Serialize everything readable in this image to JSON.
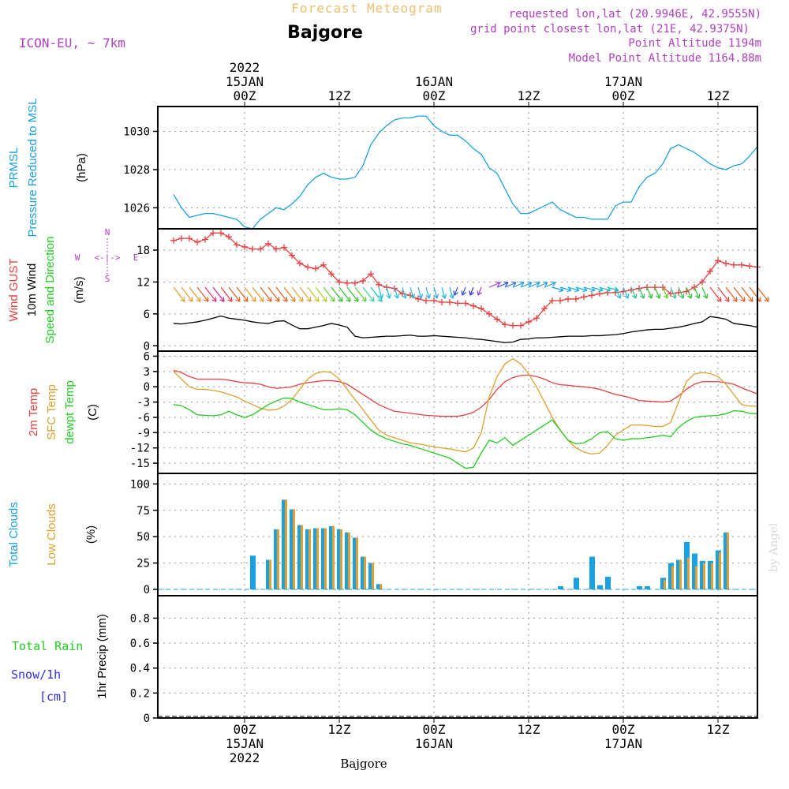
{
  "header": {
    "product": "Forecast Meteogram",
    "location": "Bajgore",
    "model": "ICON-EU, ~ 7km",
    "requested": "requested lon,lat (20.9946E, 42.9555N)",
    "closest": "grid point closest lon,lat (21E, 42.9375N)",
    "point_alt": "Point Altitude 1194m",
    "model_alt": "Model Point Altitude 1164.88m",
    "footer": "Bajgore",
    "credit": "by Angel"
  },
  "colors": {
    "cyan": "#1ba1e2",
    "red": "#e84040",
    "orange": "#e0a030",
    "green": "#22cc22",
    "purple": "#b040c0",
    "blue": "#3030e0",
    "black": "#000000"
  },
  "time_axis": {
    "top_labels": [
      {
        "t": 9,
        "lines": [
          "2022",
          "15JAN",
          "00Z"
        ]
      },
      {
        "t": 21,
        "lines": [
          "12Z"
        ]
      },
      {
        "t": 33,
        "lines": [
          "16JAN",
          "00Z"
        ]
      },
      {
        "t": 45,
        "lines": [
          "12Z"
        ]
      },
      {
        "t": 57,
        "lines": [
          "17JAN",
          "00Z"
        ]
      },
      {
        "t": 69,
        "lines": [
          "12Z"
        ]
      }
    ],
    "bottom_labels": [
      {
        "t": 9,
        "lines": [
          "00Z",
          "15JAN",
          "2022"
        ]
      },
      {
        "t": 21,
        "lines": [
          "12Z"
        ]
      },
      {
        "t": 33,
        "lines": [
          "00Z",
          "16JAN"
        ]
      },
      {
        "t": 45,
        "lines": [
          "12Z"
        ]
      },
      {
        "t": 57,
        "lines": [
          "00Z",
          "17JAN"
        ]
      },
      {
        "t": 69,
        "lines": [
          "12Z"
        ]
      }
    ],
    "t_range": [
      -2,
      74
    ]
  },
  "chart_data": [
    {
      "type": "line",
      "id": "pressure",
      "ylabel_outer": [
        "PRMSL",
        "Pressure Reduced to MSL"
      ],
      "unit": "(hPa)",
      "ylim": [
        1024.9,
        1031.3
      ],
      "yticks": [
        1026,
        1028,
        1030
      ],
      "series": [
        {
          "name": "PRMSL",
          "color": "#1ba1e2",
          "values": [
            1026.7,
            1026.0,
            1025.5,
            1025.6,
            1025.7,
            1025.7,
            1025.6,
            1025.5,
            1025.4,
            1025.0,
            1024.9,
            1025.4,
            1025.7,
            1026.0,
            1025.9,
            1026.2,
            1026.6,
            1027.2,
            1027.6,
            1027.8,
            1027.6,
            1027.5,
            1027.5,
            1027.6,
            1028.2,
            1029.3,
            1029.9,
            1030.3,
            1030.6,
            1030.7,
            1030.7,
            1030.8,
            1030.8,
            1030.3,
            1030.0,
            1029.8,
            1029.8,
            1029.5,
            1029.1,
            1028.8,
            1028.1,
            1027.8,
            1027.0,
            1026.2,
            1025.7,
            1025.7,
            1025.9,
            1026.1,
            1026.3,
            1025.9,
            1025.7,
            1025.5,
            1025.5,
            1025.4,
            1025.4,
            1025.4,
            1026.1,
            1026.3,
            1026.3,
            1027.1,
            1027.6,
            1027.8,
            1028.3,
            1029.1,
            1029.3,
            1029.1,
            1028.9,
            1028.6,
            1028.3,
            1028.1,
            1028.0,
            1028.2,
            1028.3,
            1028.7,
            1029.2
          ]
        }
      ]
    },
    {
      "type": "line",
      "id": "wind",
      "ylabel_outer": [
        "Wind GUST",
        "10m Wind",
        "Speed and Direction"
      ],
      "unit": "(m/s)",
      "ylim": [
        -1,
        22
      ],
      "yticks": [
        0,
        6,
        12,
        18
      ],
      "compass": {
        "n": "N",
        "s": "S",
        "w": "W",
        "e": "E",
        "center": "<-|->"
      },
      "series": [
        {
          "name": "Wind GUST",
          "color": "#e84040",
          "marker": "+",
          "values": [
            19.8,
            20.2,
            20.2,
            19.5,
            20.0,
            21.2,
            21.2,
            20.5,
            19.0,
            18.6,
            18.2,
            18.2,
            19.2,
            18.2,
            18.5,
            17.0,
            15.5,
            14.8,
            14.5,
            15.2,
            13.5,
            12.0,
            11.8,
            11.8,
            12.2,
            13.5,
            11.5,
            11.0,
            10.8,
            9.8,
            9.5,
            8.8,
            8.5,
            8.5,
            8.2,
            8.2,
            8.0,
            8.0,
            7.5,
            7.0,
            6.0,
            5.0,
            4.0,
            3.8,
            3.8,
            4.5,
            5.2,
            7.0,
            8.5,
            8.5,
            8.8,
            8.8,
            9.2,
            9.5,
            9.8,
            10.0,
            10.0,
            10.2,
            10.5,
            10.8,
            11.0,
            11.0,
            11.0,
            9.8,
            10.0,
            10.2,
            11.0,
            12.0,
            14.0,
            16.0,
            15.5,
            15.2,
            15.2,
            15.0,
            14.8
          ]
        },
        {
          "name": "10m Wind",
          "color": "#000000",
          "values": [
            4.2,
            4.1,
            4.3,
            4.5,
            4.8,
            5.2,
            5.6,
            5.2,
            5.0,
            4.8,
            4.5,
            4.3,
            4.2,
            4.6,
            4.7,
            3.9,
            3.2,
            3.2,
            3.5,
            3.8,
            4.2,
            3.9,
            3.5,
            1.8,
            1.5,
            1.6,
            1.7,
            1.8,
            1.8,
            1.9,
            2.0,
            1.8,
            1.8,
            1.9,
            1.8,
            1.7,
            1.6,
            1.5,
            1.3,
            1.2,
            1.0,
            0.8,
            0.6,
            0.7,
            1.2,
            1.3,
            1.5,
            1.5,
            1.6,
            1.7,
            1.8,
            1.8,
            1.8,
            1.9,
            1.9,
            2.0,
            2.1,
            2.3,
            2.6,
            2.8,
            3.0,
            3.1,
            3.1,
            3.3,
            3.5,
            3.8,
            4.2,
            4.5,
            5.5,
            5.3,
            5.0,
            4.2,
            4.0,
            3.8,
            3.5
          ]
        }
      ],
      "barbs": {
        "shown_every": 1,
        "note": "colored wind arrows from 10m wind direction"
      }
    },
    {
      "type": "line",
      "id": "temperature",
      "ylabel_outer": [
        "2m Temp",
        "SFC Temp",
        "dewpt Temp"
      ],
      "unit": "(C)",
      "ylim": [
        -17,
        7
      ],
      "yticks": [
        -15,
        -12,
        -9,
        -6,
        -3,
        0,
        3,
        6
      ],
      "series": [
        {
          "name": "2m Temp",
          "color": "#e84040",
          "values": [
            3.2,
            2.8,
            2.0,
            1.5,
            1.5,
            1.5,
            1.5,
            1.3,
            1.0,
            0.8,
            0.7,
            0.5,
            0.0,
            -0.3,
            -0.2,
            0.0,
            0.5,
            0.8,
            1.0,
            1.2,
            1.2,
            1.0,
            0.5,
            -0.5,
            -1.5,
            -2.5,
            -3.5,
            -4.2,
            -4.8,
            -5.0,
            -5.2,
            -5.4,
            -5.6,
            -5.7,
            -5.8,
            -5.8,
            -5.8,
            -5.5,
            -5.0,
            -4.0,
            -2.5,
            -0.5,
            1.0,
            1.8,
            2.2,
            2.3,
            2.0,
            1.5,
            0.8,
            0.4,
            0.3,
            0.1,
            0.0,
            -0.2,
            -0.5,
            -1.0,
            -1.5,
            -1.8,
            -2.2,
            -2.7,
            -2.8,
            -2.9,
            -3.0,
            -2.8,
            -1.8,
            -0.5,
            0.5,
            1.0,
            1.0,
            1.0,
            0.8,
            0.5,
            -0.2,
            -0.8,
            -1.4
          ]
        },
        {
          "name": "SFC Temp",
          "color": "#e0a030",
          "values": [
            3.0,
            1.5,
            0.0,
            -0.5,
            -0.5,
            -0.7,
            -1.0,
            -1.5,
            -2.0,
            -2.8,
            -3.5,
            -4.2,
            -4.6,
            -4.5,
            -3.8,
            -2.5,
            -0.5,
            1.5,
            2.6,
            3.0,
            2.8,
            1.5,
            -0.5,
            -2.5,
            -4.5,
            -6.5,
            -8.5,
            -9.5,
            -10.0,
            -10.5,
            -11.0,
            -11.2,
            -11.5,
            -11.8,
            -12.0,
            -12.2,
            -12.5,
            -12.8,
            -12.0,
            -9.0,
            -2.0,
            2.0,
            4.5,
            5.5,
            4.5,
            2.5,
            0.0,
            -3.0,
            -6.0,
            -8.5,
            -10.5,
            -12.0,
            -12.8,
            -13.2,
            -13.0,
            -11.5,
            -9.5,
            -8.5,
            -7.5,
            -7.5,
            -7.6,
            -7.8,
            -7.8,
            -7.0,
            -3.0,
            1.0,
            2.5,
            2.8,
            2.6,
            2.0,
            0.5,
            -1.5,
            -3.5,
            -3.8,
            -3.8
          ]
        },
        {
          "name": "dewpt Temp",
          "color": "#22cc22",
          "values": [
            -3.5,
            -3.7,
            -4.5,
            -5.5,
            -5.6,
            -5.7,
            -5.5,
            -4.8,
            -5.5,
            -6.0,
            -5.5,
            -4.5,
            -3.5,
            -2.8,
            -2.2,
            -2.3,
            -3.0,
            -3.5,
            -4.0,
            -4.5,
            -4.5,
            -4.3,
            -4.5,
            -5.5,
            -7.0,
            -8.5,
            -9.5,
            -10.2,
            -10.7,
            -11.2,
            -11.5,
            -12.0,
            -12.5,
            -13.0,
            -13.5,
            -14.0,
            -15.0,
            -16.0,
            -15.8,
            -13.0,
            -10.5,
            -11.0,
            -10.0,
            -11.5,
            -10.5,
            -9.5,
            -8.5,
            -7.5,
            -6.5,
            -8.5,
            -10.5,
            -11.2,
            -11.0,
            -10.2,
            -9.0,
            -8.8,
            -10.2,
            -10.5,
            -10.2,
            -10.2,
            -10.0,
            -9.8,
            -9.5,
            -9.8,
            -8.0,
            -6.8,
            -6.0,
            -5.8,
            -5.7,
            -5.6,
            -5.3,
            -4.7,
            -4.8,
            -5.2,
            -5.3
          ]
        }
      ]
    },
    {
      "type": "bar",
      "id": "clouds",
      "ylabel_outer": [
        "Total Clouds",
        "Low Clouds"
      ],
      "unit": "(%)",
      "ylim": [
        -6,
        110
      ],
      "yticks": [
        0,
        25,
        50,
        75,
        100
      ],
      "series": [
        {
          "name": "Total Clouds",
          "color": "#1ba1e2",
          "values": [
            0,
            0,
            0,
            0,
            0,
            0,
            0,
            0,
            0,
            0,
            32,
            0,
            28,
            57,
            85,
            76,
            61,
            57,
            58,
            58,
            60,
            57,
            54,
            49,
            31,
            25,
            5,
            0,
            0,
            0,
            0,
            0,
            0,
            0,
            0,
            0,
            0,
            0,
            0,
            0,
            0,
            0,
            0,
            0,
            0,
            0,
            0,
            0,
            0,
            3,
            0,
            11,
            0,
            31,
            4,
            12,
            0,
            0,
            0,
            3,
            3,
            0,
            11,
            25,
            28,
            45,
            34,
            27,
            27,
            37,
            54,
            0,
            0,
            0,
            0,
            0,
            0
          ]
        },
        {
          "name": "Low Clouds",
          "color": "#e0a030",
          "values": [
            0,
            0,
            0,
            0,
            0,
            0,
            0,
            0,
            0,
            0,
            0,
            0,
            28,
            57,
            85,
            76,
            61,
            57,
            58,
            58,
            60,
            57,
            54,
            49,
            31,
            25,
            5,
            0,
            0,
            0,
            0,
            0,
            0,
            0,
            0,
            0,
            0,
            0,
            0,
            0,
            0,
            0,
            0,
            0,
            0,
            0,
            0,
            0,
            0,
            0,
            0,
            0,
            0,
            0,
            0,
            0,
            0,
            0,
            0,
            0,
            0,
            0,
            9,
            22,
            28,
            30,
            22,
            25,
            25,
            35,
            54,
            0,
            0,
            0,
            0,
            0,
            0
          ]
        }
      ]
    },
    {
      "type": "line",
      "id": "precip",
      "ylabel_outer": [
        "Total  Rain",
        "Snow/1h",
        "[cm]"
      ],
      "unit": "1hr Precip (mm)",
      "ylim": [
        0,
        0.98
      ],
      "yticks": [
        0,
        0.2,
        0.4,
        0.6,
        0.8
      ],
      "series": [
        {
          "name": "Total Rain",
          "color": "#22cc22",
          "values": []
        },
        {
          "name": "Snow/1h",
          "color": "#3030e0",
          "values": []
        }
      ]
    }
  ]
}
